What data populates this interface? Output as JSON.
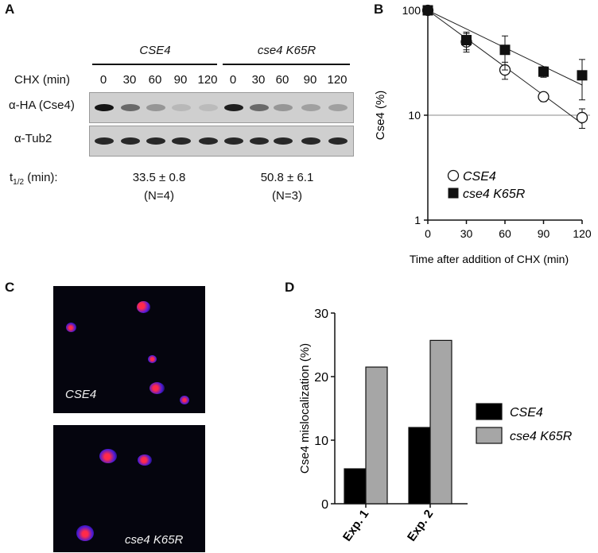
{
  "panels": {
    "a": "A",
    "b": "B",
    "c": "C",
    "d": "D"
  },
  "panel_a": {
    "groups": [
      "CSE4",
      "cse4 K65R"
    ],
    "chx_label": "CHX (min)",
    "timepoints": [
      "0",
      "30",
      "60",
      "90",
      "120",
      "0",
      "30",
      "60",
      "90",
      "120"
    ],
    "blot_rows": [
      "α-HA (Cse4)",
      "α-Tub2"
    ],
    "band_intensity_ha": [
      1.0,
      0.55,
      0.3,
      0.12,
      0.1,
      0.95,
      0.55,
      0.3,
      0.25,
      0.25
    ],
    "band_intensity_tub": [
      0.9,
      0.9,
      0.9,
      0.9,
      0.9,
      0.9,
      0.9,
      0.9,
      0.9,
      0.9
    ],
    "half_life_label": "t",
    "half_life_sub": "1/2",
    "half_life_unit": " (min):",
    "half_lives": [
      {
        "value": "33.5 ± 0.8",
        "n": "(N=4)"
      },
      {
        "value": "50.8 ± 6.1",
        "n": "(N=3)"
      }
    ]
  },
  "panel_c": {
    "images": [
      {
        "label": "CSE4"
      },
      {
        "label": "cse4 K65R"
      }
    ]
  },
  "chart_data": [
    {
      "type": "scatter",
      "log_y": true,
      "ylabel": "Cse4 (%)",
      "xlabel": "Time after addition of CHX (min)",
      "xlim": [
        0,
        120
      ],
      "ylim": [
        1,
        100
      ],
      "x_ticks": [
        "0",
        "30",
        "60",
        "90",
        "120"
      ],
      "y_ticks": [
        "1",
        "10",
        "100"
      ],
      "reference_line_y": 10,
      "legend_position": "bottom-left",
      "series": [
        {
          "name": "CSE4",
          "marker": "open-circle",
          "x": [
            0,
            30,
            60,
            90,
            120
          ],
          "y": [
            100,
            50,
            27,
            15,
            9.5
          ],
          "err": [
            0,
            10,
            5,
            1.5,
            2
          ],
          "fit": [
            100,
            53.8,
            28.9,
            15.5,
            8.3
          ]
        },
        {
          "name": "cse4 K65R",
          "marker": "filled-square",
          "x": [
            0,
            30,
            60,
            90,
            120
          ],
          "y": [
            100,
            52,
            42,
            26,
            24
          ],
          "err": [
            0,
            10,
            15,
            3,
            10
          ],
          "fit": [
            100,
            66.4,
            44.0,
            29.2,
            19.4
          ]
        }
      ]
    },
    {
      "type": "bar",
      "ylabel": "Cse4 mislocalization (%)",
      "categories": [
        "Exp. 1",
        "Exp. 2"
      ],
      "ylim": [
        0,
        30
      ],
      "y_ticks": [
        "0",
        "10",
        "20",
        "30"
      ],
      "legend_position": "right",
      "series": [
        {
          "name": "CSE4",
          "color": "#000000",
          "values": [
            5.5,
            12
          ]
        },
        {
          "name": "cse4 K65R",
          "color": "#a6a6a6",
          "values": [
            21.5,
            25.7
          ]
        }
      ]
    }
  ]
}
